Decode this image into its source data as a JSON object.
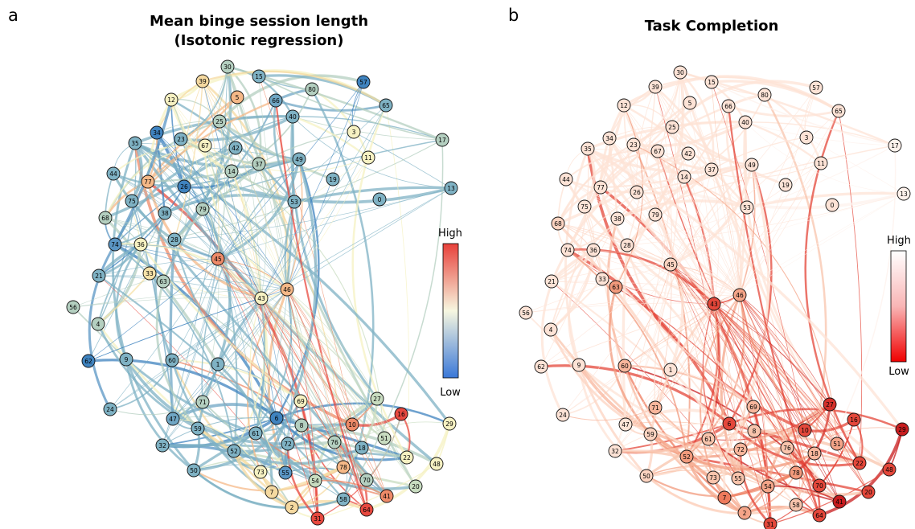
{
  "panels": [
    {
      "label": "a",
      "title_lines": [
        "Mean binge session length",
        "(Isotonic regression)"
      ],
      "colorbar": {
        "high": "High",
        "low": "Low",
        "colors": [
          "#e8403a",
          "#f7f7e0",
          "#3a78d8"
        ]
      },
      "nodes": {
        "labels": [
          "30",
          "15",
          "39",
          "80",
          "57",
          "5",
          "12",
          "66",
          "65",
          "40",
          "25",
          "3",
          "34",
          "23",
          "67",
          "42",
          "35",
          "17",
          "11",
          "49",
          "37",
          "14",
          "44",
          "77",
          "26",
          "19",
          "13",
          "0",
          "53",
          "75",
          "79",
          "38",
          "68",
          "28",
          "74",
          "36",
          "45",
          "33",
          "21",
          "63",
          "46",
          "43",
          "56",
          "4",
          "62",
          "9",
          "60",
          "1",
          "71",
          "69",
          "27",
          "16",
          "24",
          "6",
          "10",
          "8",
          "47",
          "59",
          "61",
          "29",
          "51",
          "72",
          "76",
          "18",
          "32",
          "52",
          "22",
          "48",
          "78",
          "73",
          "55",
          "50",
          "54",
          "70",
          "20",
          "7",
          "41",
          "58",
          "64",
          "2",
          "31"
        ],
        "colors": [
          "#b4cfc0",
          "#7fb2c4",
          "#f5d9a0",
          "#b4cfc0",
          "#3f83bf",
          "#f5b887",
          "#f6f1c2",
          "#6fa6c4",
          "#7fb2c4",
          "#7fb2c4",
          "#b4cfc0",
          "#f6f1c2",
          "#3f83bf",
          "#7fb2c4",
          "#f6f1c2",
          "#7fb2c4",
          "#7fb2c4",
          "#b4cfc0",
          "#f6f1c2",
          "#7fb2c4",
          "#b4cfc0",
          "#b4cfc0",
          "#7fb2c4",
          "#f5b887",
          "#3f83bf",
          "#7fb2c4",
          "#7fb2c4",
          "#7fb2c4",
          "#7fb2c4",
          "#7fb2c4",
          "#b4cfc0",
          "#7fb2c4",
          "#b4cfc0",
          "#7fb2c4",
          "#5a95c4",
          "#f6f1c2",
          "#ee8a68",
          "#f5e1a8",
          "#7fb2c4",
          "#b4cfc0",
          "#f5b887",
          "#f6f1c2",
          "#b4cfc0",
          "#b4cfc0",
          "#3f83bf",
          "#7fb2c4",
          "#7fb2c4",
          "#7fb2c4",
          "#b4cfc0",
          "#f6f1c2",
          "#c8dcc0",
          "#e8493f",
          "#7fb2c4",
          "#3f83bf",
          "#ee8a68",
          "#b4cfc0",
          "#6fa6c4",
          "#7fb2c4",
          "#7fb2c4",
          "#f6f1c2",
          "#c8dcc0",
          "#7fb2c4",
          "#b4cfc0",
          "#7fb2c4",
          "#7fb2c4",
          "#7fb2c4",
          "#f6f1c2",
          "#f6f1c2",
          "#f5b887",
          "#f6f1c2",
          "#5a95c4",
          "#7fb2c4",
          "#c8dcc0",
          "#b4cfc0",
          "#c8dcc0",
          "#f5d9a0",
          "#ee8a68",
          "#7fb2c4",
          "#e8493f",
          "#f5d9a0",
          "#e8493f"
        ]
      }
    },
    {
      "label": "b",
      "title_lines": [
        "Task Completion"
      ],
      "colorbar": {
        "high": "High",
        "low": "Low",
        "colors": [
          "#ffffff",
          "#f9b5b5",
          "#f00000"
        ]
      },
      "nodes": {
        "labels": [
          "30",
          "15",
          "39",
          "80",
          "57",
          "5",
          "12",
          "66",
          "65",
          "40",
          "25",
          "3",
          "34",
          "23",
          "67",
          "42",
          "35",
          "17",
          "11",
          "49",
          "37",
          "14",
          "44",
          "77",
          "26",
          "19",
          "13",
          "0",
          "53",
          "75",
          "79",
          "38",
          "68",
          "28",
          "74",
          "36",
          "45",
          "33",
          "21",
          "63",
          "46",
          "43",
          "56",
          "4",
          "62",
          "9",
          "60",
          "1",
          "71",
          "69",
          "27",
          "16",
          "24",
          "6",
          "10",
          "8",
          "47",
          "59",
          "61",
          "29",
          "51",
          "72",
          "76",
          "18",
          "32",
          "52",
          "22",
          "48",
          "78",
          "73",
          "55",
          "50",
          "54",
          "70",
          "20",
          "7",
          "41",
          "58",
          "64",
          "2",
          "31"
        ],
        "colors": [
          "#fde3d6",
          "#fde3d6",
          "#fde3d6",
          "#fde3d6",
          "#fde3d6",
          "#fde3d6",
          "#fde3d6",
          "#fde3d6",
          "#fde3d6",
          "#fde3d6",
          "#fde3d6",
          "#fde3d6",
          "#fde3d6",
          "#fde3d6",
          "#fde3d6",
          "#fde3d6",
          "#fde3d6",
          "#fef2ec",
          "#fde3d6",
          "#fde3d6",
          "#fde3d6",
          "#fde3d6",
          "#fde3d6",
          "#fde3d6",
          "#fde3d6",
          "#fde3d6",
          "#fef2ec",
          "#fde3d6",
          "#fde3d6",
          "#fde3d6",
          "#fde3d6",
          "#fde3d6",
          "#fcd3c0",
          "#fde3d6",
          "#fde3d6",
          "#fde3d6",
          "#fcd3c0",
          "#fde3d6",
          "#fde3d6",
          "#f29a7c",
          "#f4a488",
          "#e4473a",
          "#fde3d6",
          "#fde3d6",
          "#fde3d6",
          "#fde3d6",
          "#f8b69c",
          "#fde3d6",
          "#f8b69c",
          "#f8b69c",
          "#d4302a",
          "#e4473a",
          "#fde3d6",
          "#e4473a",
          "#e4473a",
          "#f8c4ac",
          "#fde3d6",
          "#fcd3c0",
          "#f8c4ac",
          "#c81d1f",
          "#f4a488",
          "#f8b69c",
          "#f8c4ac",
          "#f8b69c",
          "#fde3d6",
          "#f29a7c",
          "#e4473a",
          "#e4473a",
          "#f29a7c",
          "#f8c4ac",
          "#f8c4ac",
          "#fcd3c0",
          "#f4a488",
          "#e4473a",
          "#e4473a",
          "#ee7a5c",
          "#c81d1f",
          "#f8c4ac",
          "#e4473a",
          "#f4a488",
          "#e4473a"
        ]
      }
    }
  ]
}
